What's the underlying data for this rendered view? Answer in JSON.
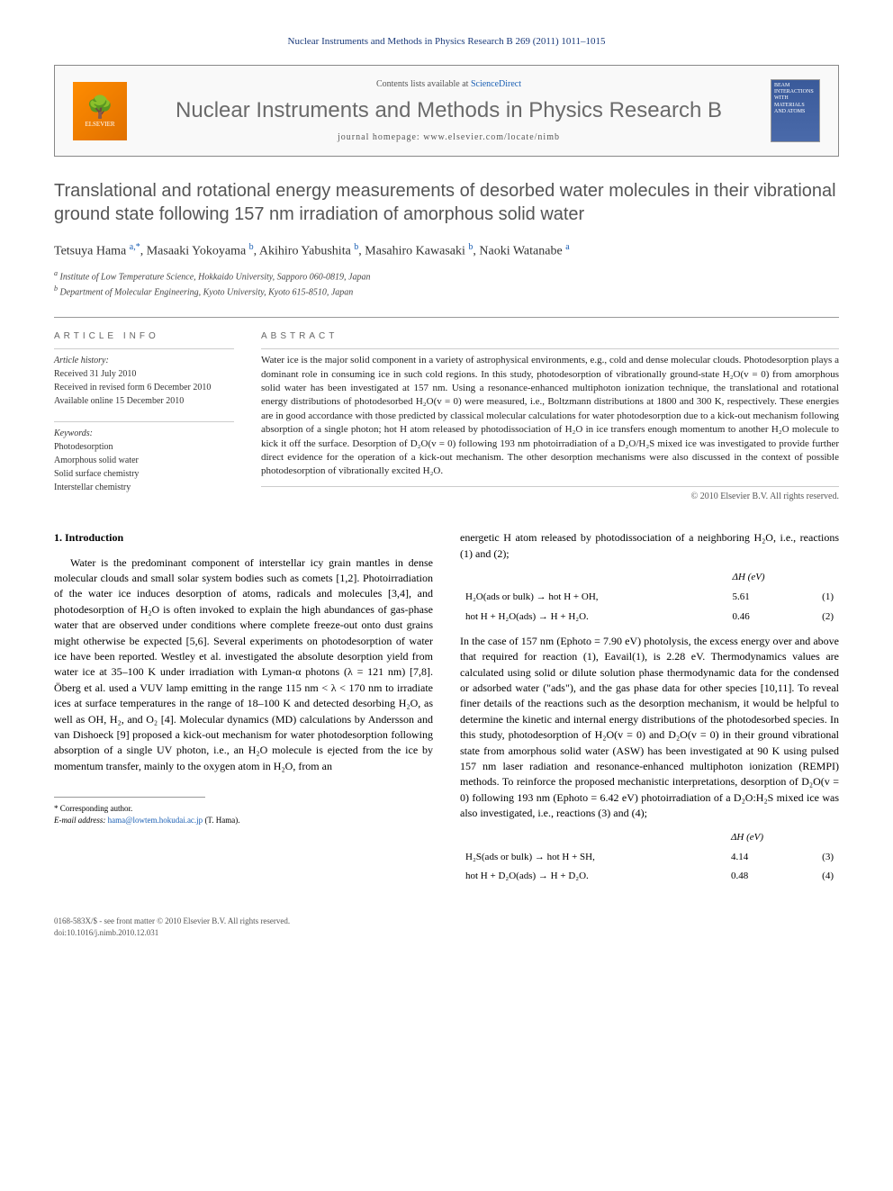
{
  "header": {
    "citation": "Nuclear Instruments and Methods in Physics Research B 269 (2011) 1011–1015",
    "contents_prefix": "Contents lists available at ",
    "contents_link": "ScienceDirect",
    "journal_name": "Nuclear Instruments and Methods in Physics Research B",
    "homepage_label": "journal homepage: www.elsevier.com/locate/nimb",
    "elsevier": "ELSEVIER",
    "cover_text": "BEAM INTERACTIONS WITH MATERIALS AND ATOMS"
  },
  "article": {
    "title": "Translational and rotational energy measurements of desorbed water molecules in their vibrational ground state following 157 nm irradiation of amorphous solid water",
    "authors_html": "Tetsuya Hama <span class='sup'>a,*</span>, Masaaki Yokoyama <span class='sup'>b</span>, Akihiro Yabushita <span class='sup'>b</span>, Masahiro Kawasaki <span class='sup'>b</span>, Naoki Watanabe <span class='sup'>a</span>",
    "affiliations": {
      "a": "Institute of Low Temperature Science, Hokkaido University, Sapporo 060-0819, Japan",
      "b": "Department of Molecular Engineering, Kyoto University, Kyoto 615-8510, Japan"
    }
  },
  "info": {
    "heading": "ARTICLE INFO",
    "history_label": "Article history:",
    "received": "Received 31 July 2010",
    "revised": "Received in revised form 6 December 2010",
    "online": "Available online 15 December 2010",
    "keywords_label": "Keywords:",
    "keywords": [
      "Photodesorption",
      "Amorphous solid water",
      "Solid surface chemistry",
      "Interstellar chemistry"
    ]
  },
  "abstract": {
    "heading": "ABSTRACT",
    "text": "Water ice is the major solid component in a variety of astrophysical environments, e.g., cold and dense molecular clouds. Photodesorption plays a dominant role in consuming ice in such cold regions. In this study, photodesorption of vibrationally ground-state H₂O(v = 0) from amorphous solid water has been investigated at 157 nm. Using a resonance-enhanced multiphoton ionization technique, the translational and rotational energy distributions of photodesorbed H₂O(v = 0) were measured, i.e., Boltzmann distributions at 1800 and 300 K, respectively. These energies are in good accordance with those predicted by classical molecular calculations for water photodesorption due to a kick-out mechanism following absorption of a single photon; hot H atom released by photodissociation of H₂O in ice transfers enough momentum to another H₂O molecule to kick it off the surface. Desorption of D₂O(v = 0) following 193 nm photoirradiation of a D₂O/H₂S mixed ice was investigated to provide further direct evidence for the operation of a kick-out mechanism. The other desorption mechanisms were also discussed in the context of possible photodesorption of vibrationally excited H₂O.",
    "copyright": "© 2010 Elsevier B.V. All rights reserved."
  },
  "body": {
    "section1_heading": "1. Introduction",
    "left_p1": "Water is the predominant component of interstellar icy grain mantles in dense molecular clouds and small solar system bodies such as comets [1,2]. Photoirradiation of the water ice induces desorption of atoms, radicals and molecules [3,4], and photodesorption of H₂O is often invoked to explain the high abundances of gas-phase water that are observed under conditions where complete freeze-out onto dust grains might otherwise be expected [5,6]. Several experiments on photodesorption of water ice have been reported. Westley et al. investigated the absolute desorption yield from water ice at 35–100 K under irradiation with Lyman-α photons (λ = 121 nm) [7,8]. Öberg et al. used a VUV lamp emitting in the range 115 nm < λ < 170 nm to irradiate ices at surface temperatures in the range of 18–100 K and detected desorbing H₂O, as well as OH, H₂, and O₂ [4]. Molecular dynamics (MD) calculations by Andersson and van Dishoeck [9] proposed a kick-out mechanism for water photodesorption following absorption of a single UV photon, i.e., an H₂O molecule is ejected from the ice by momentum transfer, mainly to the oxygen atom in H₂O, from an",
    "right_p1": "energetic H atom released by photodissociation of a neighboring H₂O, i.e., reactions (1) and (2);",
    "eq_dh_header": "ΔH (eV)",
    "eq1_lhs": "H₂O(ads or bulk) → hot H + OH,",
    "eq1_dh": "5.61",
    "eq1_num": "(1)",
    "eq2_lhs": "hot H + H₂O(ads) → H + H₂O.",
    "eq2_dh": "0.46",
    "eq2_num": "(2)",
    "right_p2": "In the case of 157 nm (Ephoto = 7.90 eV) photolysis, the excess energy over and above that required for reaction (1), Eavail(1), is 2.28 eV. Thermodynamics values are calculated using solid or dilute solution phase thermodynamic data for the condensed or adsorbed water (\"ads\"), and the gas phase data for other species [10,11]. To reveal finer details of the reactions such as the desorption mechanism, it would be helpful to determine the kinetic and internal energy distributions of the photodesorbed species. In this study, photodesorption of H₂O(v = 0) and D₂O(v = 0) in their ground vibrational state from amorphous solid water (ASW) has been investigated at 90 K using pulsed 157 nm laser radiation and resonance-enhanced multiphoton ionization (REMPI) methods. To reinforce the proposed mechanistic interpretations, desorption of D₂O(v = 0) following 193 nm (Ephoto = 6.42 eV) photoirradiation of a D₂O:H₂S mixed ice was also investigated, i.e., reactions (3) and (4);",
    "eq3_lhs": "H₂S(ads or bulk) → hot H + SH,",
    "eq3_dh": "4.14",
    "eq3_num": "(3)",
    "eq4_lhs": "hot H + D₂O(ads) → H + D₂O.",
    "eq4_dh": "0.48",
    "eq4_num": "(4)"
  },
  "footnote": {
    "corr_label": "* Corresponding author.",
    "email_label": "E-mail address: ",
    "email": "hama@lowtem.hokudai.ac.jp",
    "email_suffix": " (T. Hama)."
  },
  "footer": {
    "issn": "0168-583X/$ - see front matter © 2010 Elsevier B.V. All rights reserved.",
    "doi": "doi:10.1016/j.nimb.2010.12.031"
  }
}
